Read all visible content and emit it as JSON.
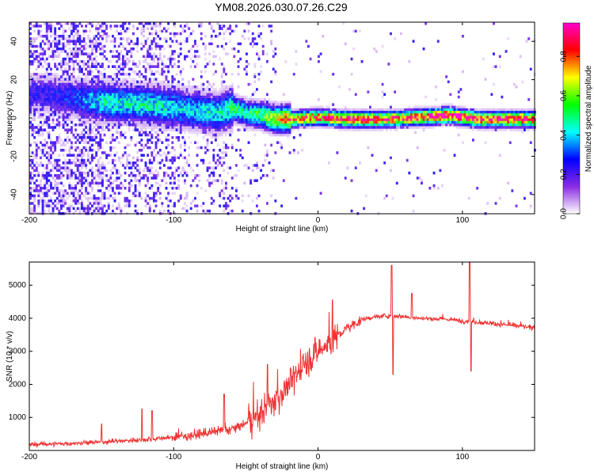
{
  "chart_data": [
    {
      "type": "heatmap",
      "title": "YM08.2026.030.07.26.C29",
      "xlabel": "Height of straight line (km)",
      "ylabel": "Frequency (Hz)",
      "xlim": [
        -200,
        150
      ],
      "ylim": [
        -50,
        50
      ],
      "xticks": [
        -200,
        -100,
        0,
        100
      ],
      "yticks": [
        -40,
        -20,
        0,
        20,
        40
      ],
      "colorbar": {
        "label": "Normalized spectral amplitude",
        "range": [
          0.0,
          0.97
        ],
        "ticks": [
          0.0,
          0.2,
          0.4,
          0.6,
          0.8
        ],
        "tick_labels": [
          "0.0",
          "0.2",
          "0.4",
          "0.6",
          "0.8"
        ],
        "colormap": [
          "#ffffff",
          "#8a2be2",
          "#0000ff",
          "#00ffff",
          "#00ff00",
          "#ffff00",
          "#ff0000",
          "#ff00cc"
        ]
      },
      "ridge": {
        "x": [
          -190,
          -170,
          -150,
          -130,
          -110,
          -90,
          -70,
          -60,
          -50,
          -40,
          -30,
          -20,
          0,
          20,
          50,
          90,
          110,
          150
        ],
        "freq": [
          13,
          11,
          9,
          8,
          7,
          5,
          3,
          6,
          3,
          2,
          0,
          0,
          1,
          0,
          0,
          2,
          0,
          0
        ],
        "amplitude": [
          0.25,
          0.3,
          0.45,
          0.45,
          0.45,
          0.4,
          0.45,
          0.5,
          0.5,
          0.55,
          0.7,
          0.8,
          0.85,
          0.9,
          0.85,
          0.95,
          0.9,
          0.9
        ]
      }
    },
    {
      "type": "line",
      "title": "",
      "xlabel": "Height of straight line (km)",
      "ylabel": "SNR (10 * v/v)",
      "xlim": [
        -200,
        150
      ],
      "ylim": [
        0,
        5700
      ],
      "xticks": [
        -200,
        -100,
        0,
        100
      ],
      "yticks": [
        1000,
        2000,
        3000,
        4000,
        5000
      ],
      "color": "#ee3333",
      "series": [
        {
          "name": "SNR",
          "x": [
            -200,
            -180,
            -160,
            -140,
            -120,
            -100,
            -80,
            -60,
            -50,
            -40,
            -30,
            -20,
            -10,
            0,
            10,
            20,
            30,
            40,
            50,
            60,
            70,
            80,
            90,
            100,
            110,
            120,
            130,
            140,
            150
          ],
          "values": [
            180,
            200,
            230,
            280,
            330,
            400,
            500,
            650,
            800,
            1100,
            1500,
            2000,
            2600,
            3000,
            3300,
            3700,
            3950,
            4050,
            4080,
            4050,
            4000,
            3980,
            3970,
            3920,
            3880,
            3850,
            3800,
            3760,
            3700
          ]
        }
      ],
      "spikes": [
        {
          "x": -150,
          "value": 800
        },
        {
          "x": -122,
          "value": 1250
        },
        {
          "x": -115,
          "value": 1200
        },
        {
          "x": -65,
          "value": 1700
        },
        {
          "x": -35,
          "value": 2600
        },
        {
          "x": 10,
          "value": 4550
        },
        {
          "x": 51,
          "value": 5600
        },
        {
          "x": 52,
          "value": 2300
        },
        {
          "x": 65,
          "value": 4750
        },
        {
          "x": 105,
          "value": 5750
        },
        {
          "x": 106,
          "value": 2400
        }
      ]
    }
  ]
}
